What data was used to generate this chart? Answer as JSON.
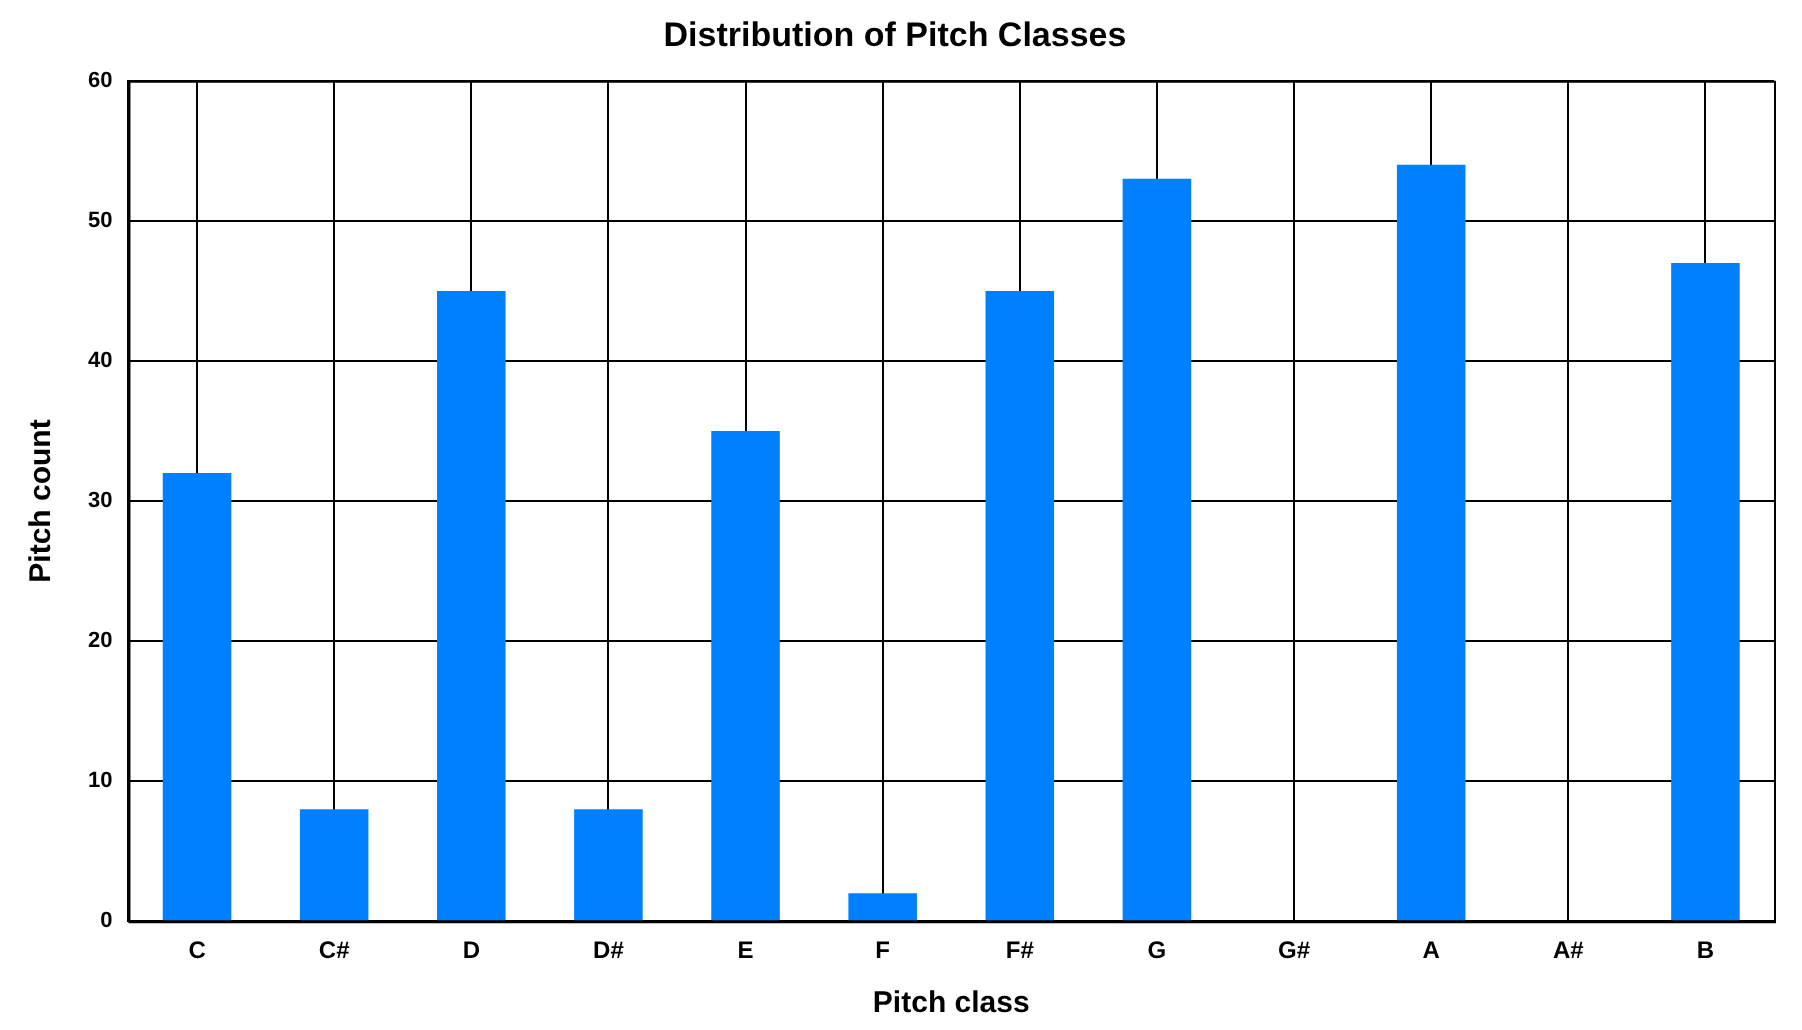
{
  "chart_data": {
    "type": "bar",
    "title": "Distribution of Pitch Classes",
    "xlabel": "Pitch class",
    "ylabel": "Pitch count",
    "categories": [
      "C",
      "C#",
      "D",
      "D#",
      "E",
      "F",
      "F#",
      "G",
      "G#",
      "A",
      "A#",
      "B"
    ],
    "values": [
      32,
      8,
      45,
      8,
      35,
      2,
      45,
      53,
      0,
      54,
      0,
      47
    ],
    "color": "#0080ff",
    "ylim": [
      0,
      60
    ],
    "yticks": [
      0,
      10,
      20,
      30,
      40,
      50,
      60
    ],
    "grid": true
  }
}
